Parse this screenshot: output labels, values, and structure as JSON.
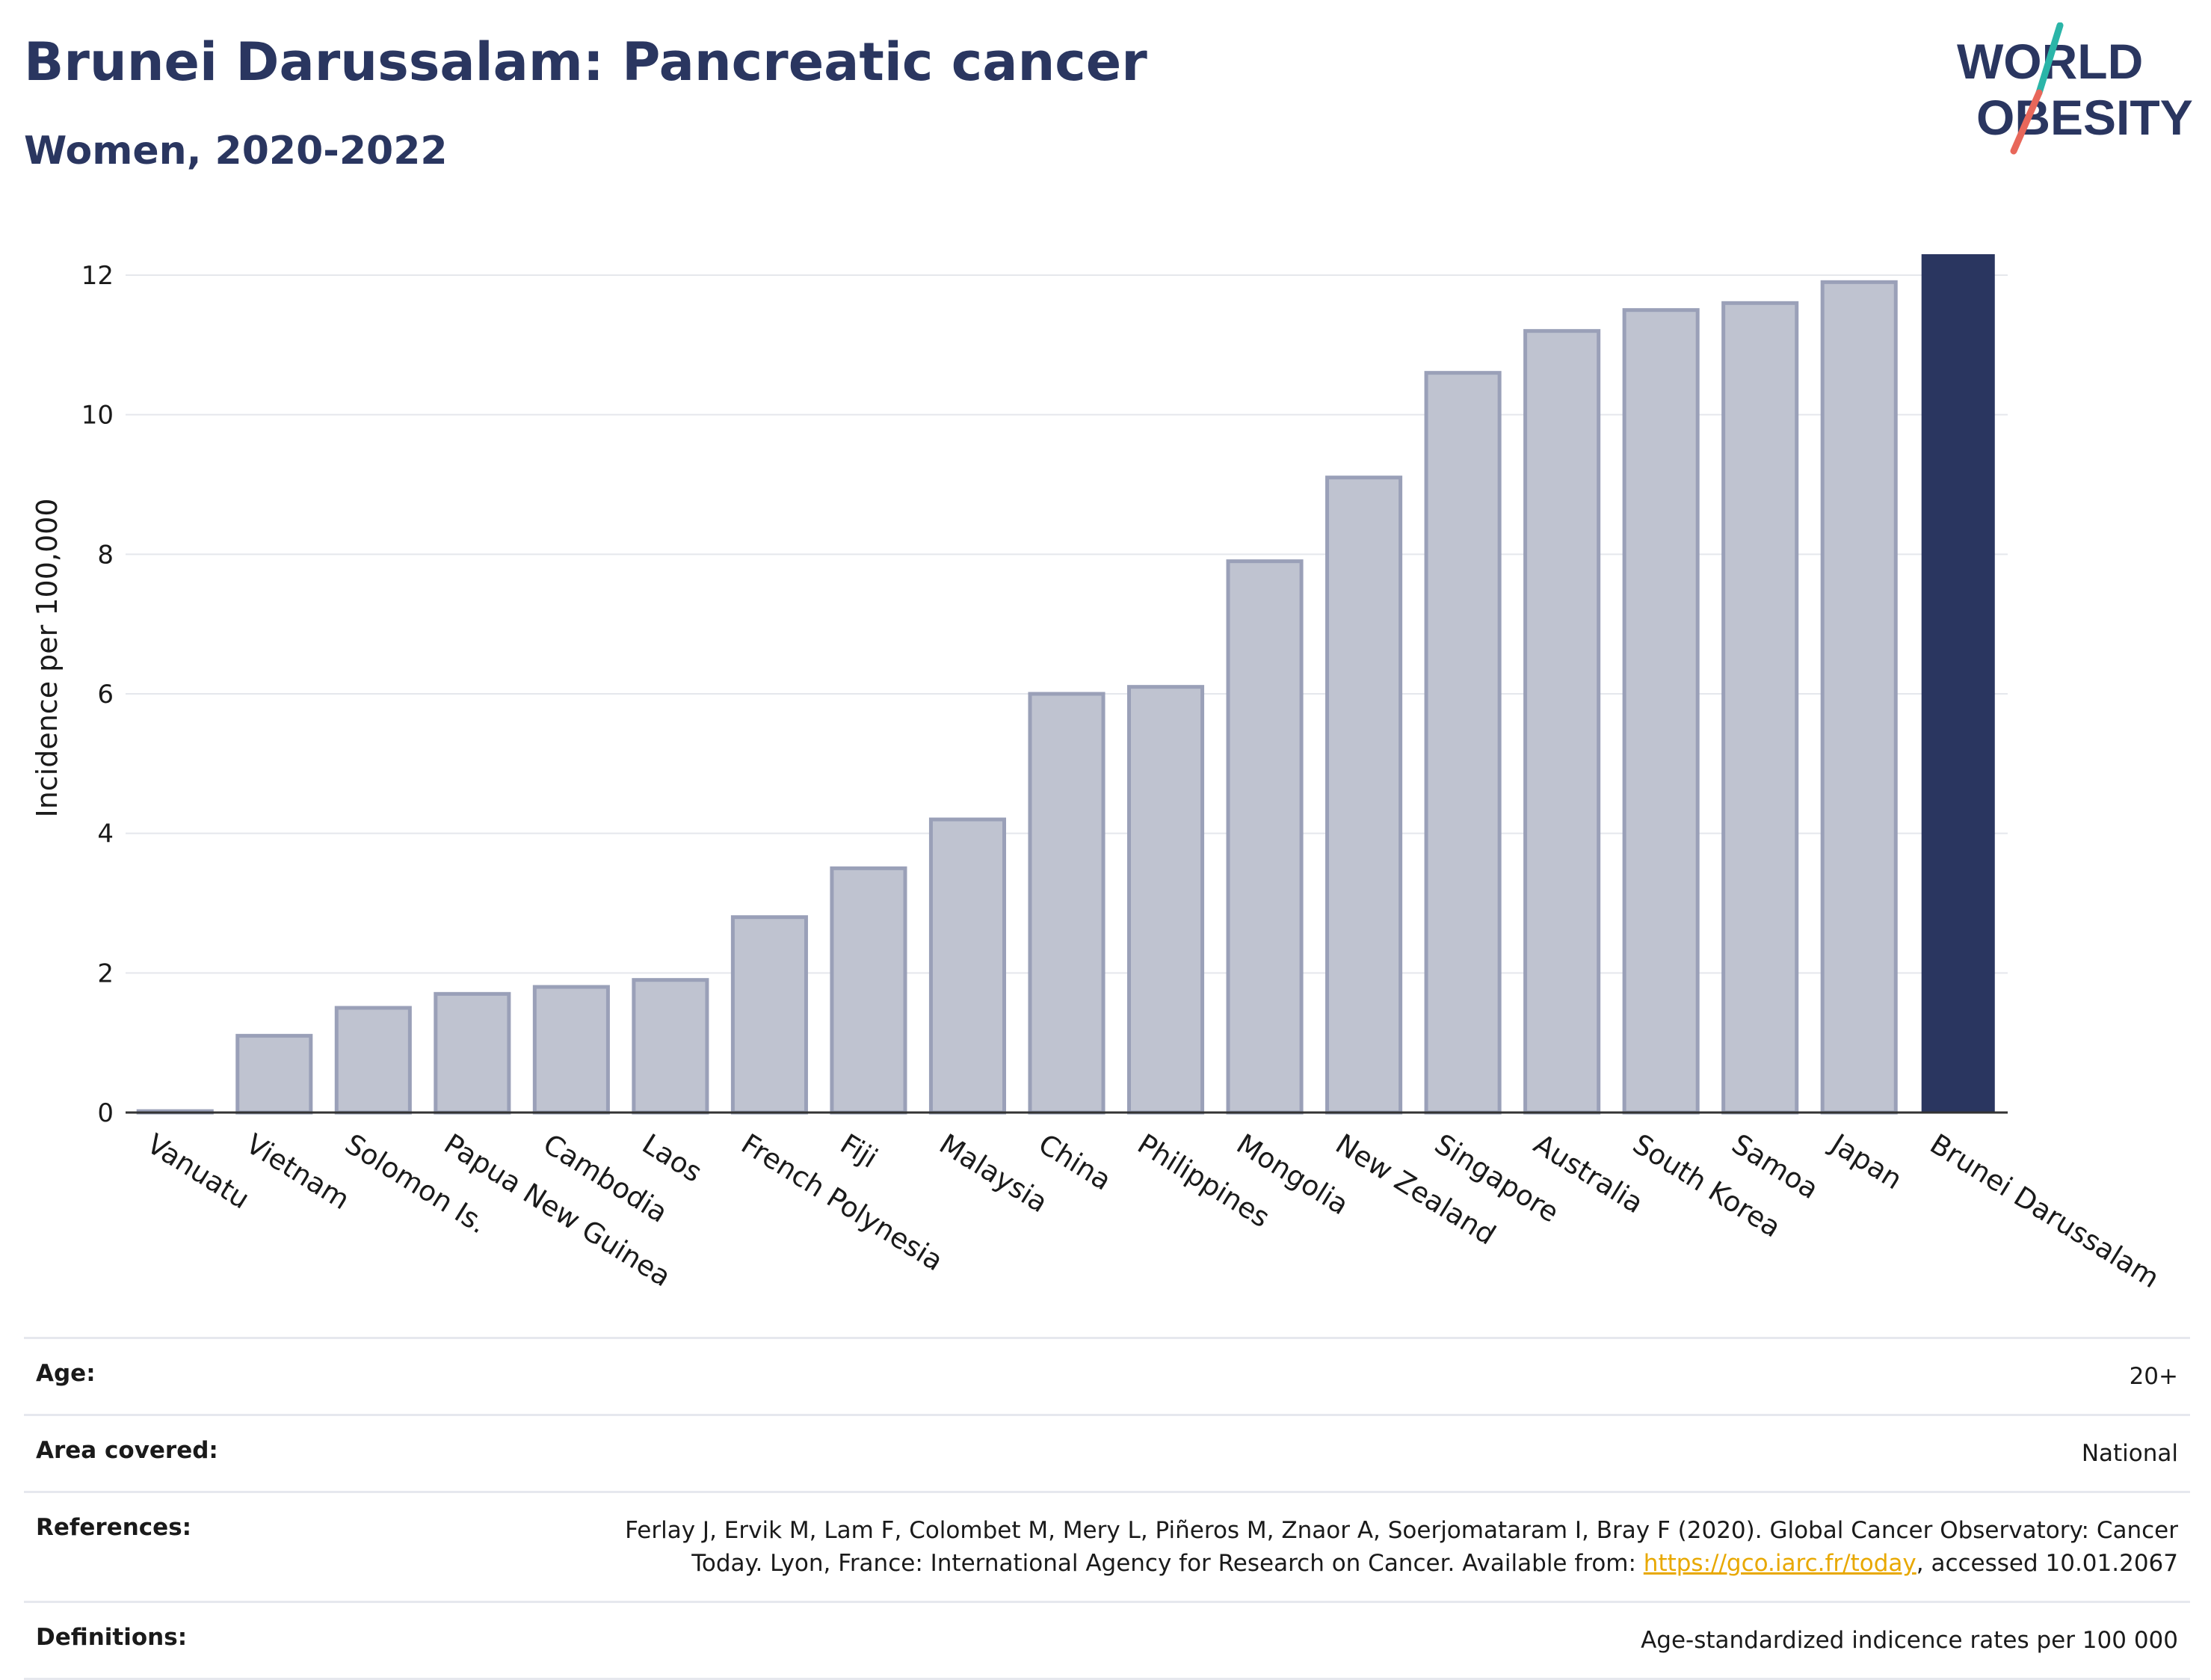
{
  "header": {
    "title": "Brunei Darussalam: Pancreatic cancer",
    "subtitle": "Women, 2020-2022",
    "logo_line1": "WORLD",
    "logo_line2": "OBESITY"
  },
  "colors": {
    "primary": "#2a3660",
    "bar_default": "#bfc3d0",
    "bar_default_border": "#9aa0b8",
    "bar_highlight": "#2a3660",
    "logo_teal": "#2bb5a8",
    "logo_coral": "#e8675a",
    "link": "#e8a800"
  },
  "chart_data": {
    "type": "bar",
    "categories": [
      "Vanuatu",
      "Vietnam",
      "Solomon Is.",
      "Papua New Guinea",
      "Cambodia",
      "Laos",
      "French Polynesia",
      "Fiji",
      "Malaysia",
      "China",
      "Philippines",
      "Mongolia",
      "New Zealand",
      "Singapore",
      "Australia",
      "South Korea",
      "Samoa",
      "Japan",
      "Brunei Darussalam"
    ],
    "values": [
      0.02,
      1.1,
      1.5,
      1.7,
      1.8,
      1.9,
      2.8,
      3.5,
      4.2,
      6.0,
      6.1,
      7.9,
      9.1,
      10.6,
      11.2,
      11.5,
      11.6,
      11.9,
      12.3
    ],
    "highlight": "Brunei Darussalam",
    "ylabel": "Incidence per 100,000",
    "xlabel": "",
    "ylim": [
      0,
      12.6
    ],
    "yticks": [
      0,
      2,
      4,
      6,
      8,
      10,
      12
    ],
    "grid": true
  },
  "info": {
    "age_label": "Age:",
    "age_value": "20+",
    "area_label": "Area covered:",
    "area_value": "National",
    "references_label": "References:",
    "references_text": "Ferlay J, Ervik M, Lam F, Colombet M, Mery L, Piñeros M, Znaor A, Soerjomataram I, Bray F (2020). Global Cancer Observatory: Cancer Today. Lyon, France: International Agency for Research on Cancer. Available from: ",
    "references_link": "https://gco.iarc.fr/today",
    "references_suffix": ", accessed 10.01.2067",
    "definitions_label": "Definitions:",
    "definitions_value": "Age-standardized indicence rates per 100 000"
  }
}
